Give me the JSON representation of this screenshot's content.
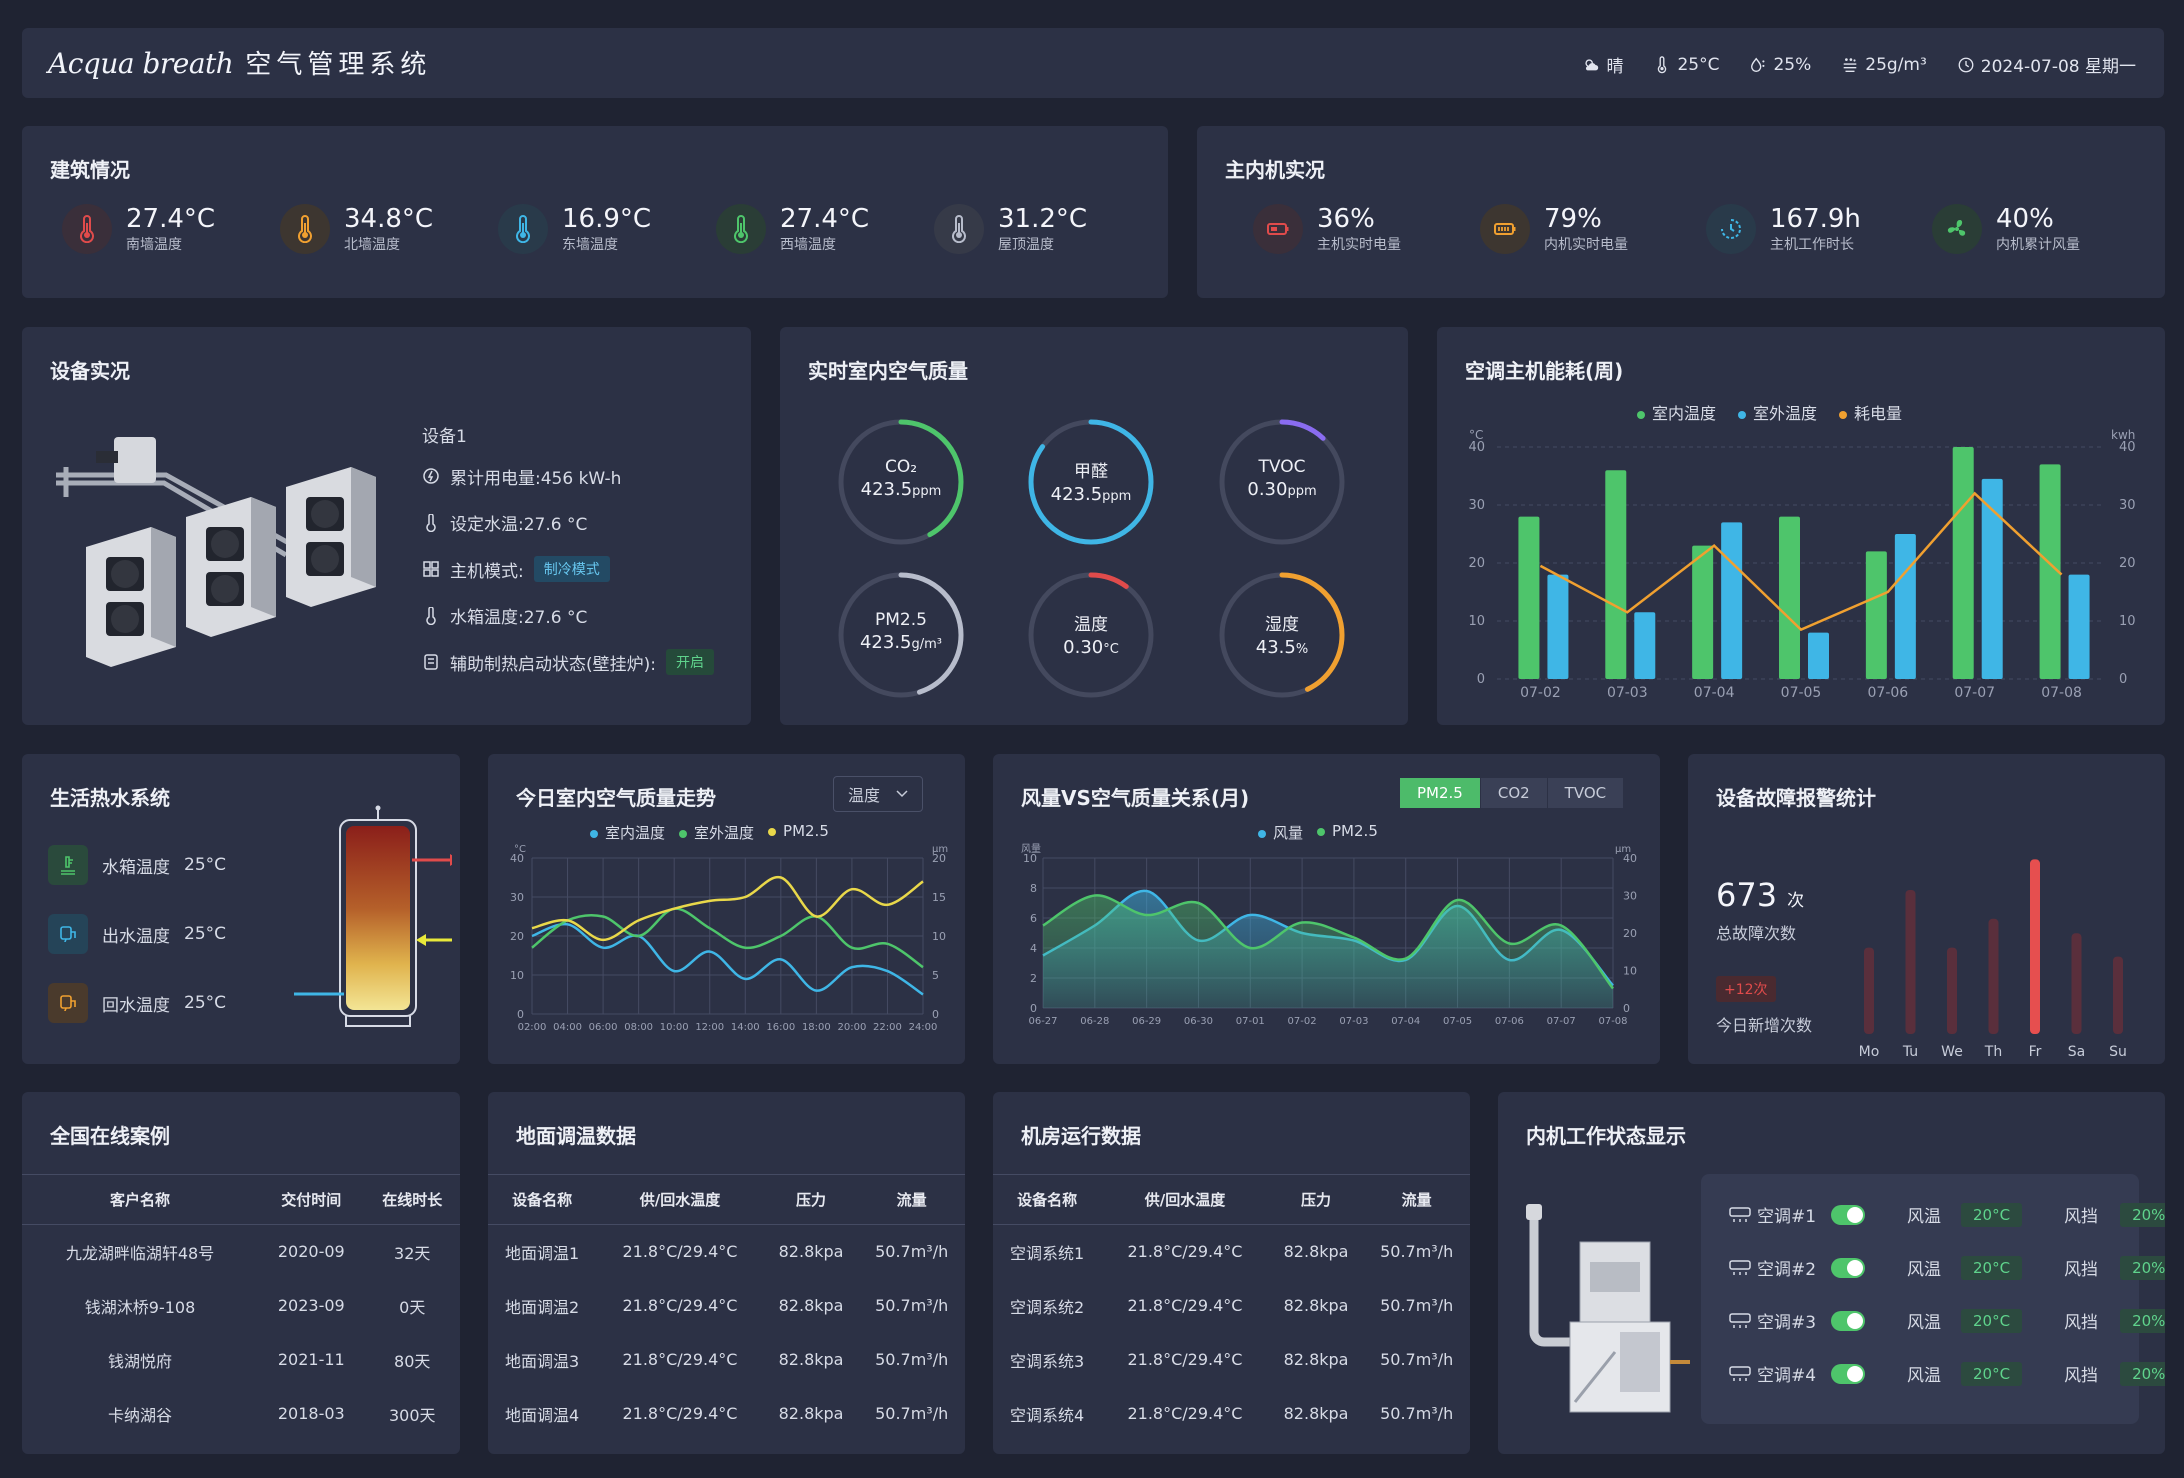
{
  "header": {
    "brand_en": "Acqua breath",
    "brand_cn": "空气管理系统",
    "weather": "晴",
    "temp": "25°C",
    "humidity": "25%",
    "dust": "25g/m³",
    "datetime": "2024-07-08 星期一"
  },
  "building": {
    "title": "建筑情况",
    "items": [
      {
        "value": "27.4°C",
        "label": "南墙温度",
        "color": "#e04b4b"
      },
      {
        "value": "34.8°C",
        "label": "北墙温度",
        "color": "#f0a030"
      },
      {
        "value": "16.9°C",
        "label": "东墙温度",
        "color": "#3fb6e6"
      },
      {
        "value": "27.4°C",
        "label": "西墙温度",
        "color": "#4ec56b"
      },
      {
        "value": "31.2°C",
        "label": "屋顶温度",
        "color": "#b7bccb"
      }
    ]
  },
  "machine": {
    "title": "主内机实况",
    "items": [
      {
        "value": "36%",
        "label": "主机实时电量",
        "color": "#e04b4b"
      },
      {
        "value": "79%",
        "label": "内机实时电量",
        "color": "#f0a030"
      },
      {
        "value": "167.9h",
        "label": "主机工作时长",
        "color": "#3fb6e6"
      },
      {
        "value": "40%",
        "label": "内机累计风量",
        "color": "#4ec56b"
      }
    ]
  },
  "equipment": {
    "title": "设备实况",
    "name": "设备1",
    "power": "累计用电量:456 kW-h",
    "water_temp": "设定水温:27.6 °C",
    "mode_label": "主机模式:",
    "mode_value": "制冷模式",
    "tank_temp": "水箱温度:27.6 °C",
    "aux_label": "辅助制热启动状态(壁挂炉):",
    "aux_value": "开启"
  },
  "air_quality": {
    "title": "实时室内空气质量",
    "gauges": [
      {
        "name": "CO₂",
        "value": "423.5",
        "unit": "ppm",
        "pct": 0.42,
        "color": "#4ec56b"
      },
      {
        "name": "甲醛",
        "value": "423.5",
        "unit": "ppm",
        "pct": 0.85,
        "color": "#3fb6e6"
      },
      {
        "name": "TVOC",
        "value": "0.30",
        "unit": "ppm",
        "pct": 0.12,
        "color": "#8a6cf0"
      },
      {
        "name": "PM2.5",
        "value": "423.5",
        "unit": "g/m³",
        "pct": 0.45,
        "color": "#b7bccb"
      },
      {
        "name": "温度",
        "value": "0.30",
        "unit": "°C",
        "pct": 0.1,
        "color": "#e04b4b"
      },
      {
        "name": "湿度",
        "value": "43.5",
        "unit": "%",
        "pct": 0.43,
        "color": "#f0a030"
      }
    ]
  },
  "energy": {
    "title": "空调主机能耗(周)",
    "legend": [
      "室内温度",
      "室外温度",
      "耗电量"
    ],
    "ylabel_left": "°C",
    "ylabel_right": "kwh"
  },
  "hot_water": {
    "title": "生活热水系统",
    "rows": [
      {
        "label": "水箱温度",
        "value": "25°C",
        "color": "#4ec56b"
      },
      {
        "label": "出水温度",
        "value": "25°C",
        "color": "#3fb6e6"
      },
      {
        "label": "回水温度",
        "value": "25°C",
        "color": "#f0a030"
      }
    ]
  },
  "trend": {
    "title": "今日室内空气质量走势",
    "select": "温度",
    "legend": [
      "室内温度",
      "室外温度",
      "PM2.5"
    ],
    "ylabel_left": "°C",
    "ylabel_right": "μm"
  },
  "wind": {
    "title": "风量VS空气质量关系(月)",
    "tabs": [
      "PM2.5",
      "CO2",
      "TVOC"
    ],
    "legend": [
      "风量",
      "PM2.5"
    ],
    "ylabel_left": "风量",
    "ylabel_right": "μm"
  },
  "fault": {
    "title": "设备故障报警统计",
    "total": "673",
    "total_unit": "次",
    "total_label": "总故障次数",
    "new_badge": "+12次",
    "new_label": "今日新增次数"
  },
  "cases": {
    "title": "全国在线案例",
    "headers": [
      "客户名称",
      "交付时间",
      "在线时长"
    ],
    "rows": [
      [
        "九龙湖畔临湖轩48号",
        "2020-09",
        "32天"
      ],
      [
        "钱湖沐桥9-108",
        "2023-09",
        "0天"
      ],
      [
        "钱湖悦府",
        "2021-11",
        "80天"
      ],
      [
        "卡纳湖谷",
        "2018-03",
        "300天"
      ]
    ]
  },
  "floor": {
    "title": "地面调温数据",
    "headers": [
      "设备名称",
      "供/回水温度",
      "压力",
      "流量"
    ],
    "rows": [
      [
        "地面调温1",
        "21.8°C/29.4°C",
        "82.8kpa",
        "50.7m³/h"
      ],
      [
        "地面调温2",
        "21.8°C/29.4°C",
        "82.8kpa",
        "50.7m³/h"
      ],
      [
        "地面调温3",
        "21.8°C/29.4°C",
        "82.8kpa",
        "50.7m³/h"
      ],
      [
        "地面调温4",
        "21.8°C/29.4°C",
        "82.8kpa",
        "50.7m³/h"
      ]
    ]
  },
  "room": {
    "title": "机房运行数据",
    "headers": [
      "设备名称",
      "供/回水温度",
      "压力",
      "流量"
    ],
    "rows": [
      [
        "空调系统1",
        "21.8°C/29.4°C",
        "82.8kpa",
        "50.7m³/h"
      ],
      [
        "空调系统2",
        "21.8°C/29.4°C",
        "82.8kpa",
        "50.7m³/h"
      ],
      [
        "空调系统3",
        "21.8°C/29.4°C",
        "82.8kpa",
        "50.7m³/h"
      ],
      [
        "空调系统4",
        "21.8°C/29.4°C",
        "82.8kpa",
        "50.7m³/h"
      ]
    ]
  },
  "indoor": {
    "title": "内机工作状态显示",
    "units": [
      {
        "name": "空调#1",
        "temp_label": "风温",
        "temp": "20°C",
        "fan_label": "风挡",
        "fan": "20%"
      },
      {
        "name": "空调#2",
        "temp_label": "风温",
        "temp": "20°C",
        "fan_label": "风挡",
        "fan": "20%"
      },
      {
        "name": "空调#3",
        "temp_label": "风温",
        "temp": "20°C",
        "fan_label": "风挡",
        "fan": "20%"
      },
      {
        "name": "空调#4",
        "temp_label": "风温",
        "temp": "20°C",
        "fan_label": "风挡",
        "fan": "20%"
      }
    ]
  },
  "chart_data": [
    {
      "type": "bar",
      "title": "空调主机能耗(周)",
      "categories": [
        "07-02",
        "07-03",
        "07-04",
        "07-05",
        "07-06",
        "07-07",
        "07-08"
      ],
      "series": [
        {
          "name": "室内温度",
          "kind": "bar",
          "color": "#4ec56b",
          "values": [
            28,
            36,
            23,
            28,
            22,
            40,
            37
          ]
        },
        {
          "name": "室外温度",
          "kind": "bar",
          "color": "#3fb6e6",
          "values": [
            18,
            11.5,
            27,
            8,
            25,
            34.5,
            18
          ]
        },
        {
          "name": "耗电量",
          "kind": "line",
          "color": "#f0a030",
          "values": [
            19.5,
            11.5,
            23,
            8.5,
            15,
            32,
            18
          ]
        }
      ],
      "ylim": [
        0,
        40
      ],
      "yticks": [
        0,
        10,
        20,
        30,
        40
      ],
      "grid": true
    },
    {
      "type": "line",
      "title": "今日室内空气质量走势",
      "x": [
        "02:00",
        "04:00",
        "06:00",
        "08:00",
        "10:00",
        "12:00",
        "14:00",
        "16:00",
        "18:00",
        "20:00",
        "22:00",
        "24:00"
      ],
      "series": [
        {
          "name": "室内温度",
          "color": "#3fb6e6",
          "values": [
            20,
            23,
            17,
            20,
            11,
            16,
            9,
            14,
            6,
            12,
            11,
            5
          ]
        },
        {
          "name": "室外温度",
          "color": "#4ec56b",
          "values": [
            17,
            24,
            25,
            20,
            27,
            22,
            17,
            20,
            25,
            17,
            18,
            12
          ]
        },
        {
          "name": "PM2.5",
          "color": "#e9d84a",
          "values": [
            22,
            24,
            19,
            24,
            27,
            29,
            30,
            35,
            25,
            32,
            28,
            34
          ]
        }
      ],
      "ylim": [
        0,
        40
      ],
      "y2lim": [
        0,
        20
      ],
      "grid": true
    },
    {
      "type": "area",
      "title": "风量VS空气质量关系(月)",
      "x": [
        "06-27",
        "06-28",
        "06-29",
        "06-30",
        "07-01",
        "07-02",
        "07-03",
        "07-04",
        "07-05",
        "07-06",
        "07-07",
        "07-08"
      ],
      "series": [
        {
          "name": "风量",
          "color": "#3fb6e6",
          "values": [
            3.5,
            5.5,
            7.8,
            4.5,
            6.2,
            5,
            4.5,
            3.2,
            6.8,
            3.2,
            5.2,
            1.5
          ]
        },
        {
          "name": "PM2.5",
          "color": "#4ec56b",
          "values": [
            5.5,
            7.5,
            6.2,
            7,
            4,
            5.7,
            4.7,
            3.3,
            7.2,
            4.3,
            5.5,
            1.3
          ]
        }
      ],
      "ylim": [
        0,
        10
      ],
      "y2lim": [
        0,
        40
      ],
      "grid": true
    },
    {
      "type": "bar",
      "title": "设备故障报警统计",
      "categories": [
        "Mo",
        "Tu",
        "We",
        "Th",
        "Fr",
        "Sa",
        "Su"
      ],
      "values": [
        48,
        80,
        48,
        64,
        97,
        56,
        43
      ],
      "highlight": "Fr",
      "ylim": [
        0,
        100
      ]
    }
  ]
}
